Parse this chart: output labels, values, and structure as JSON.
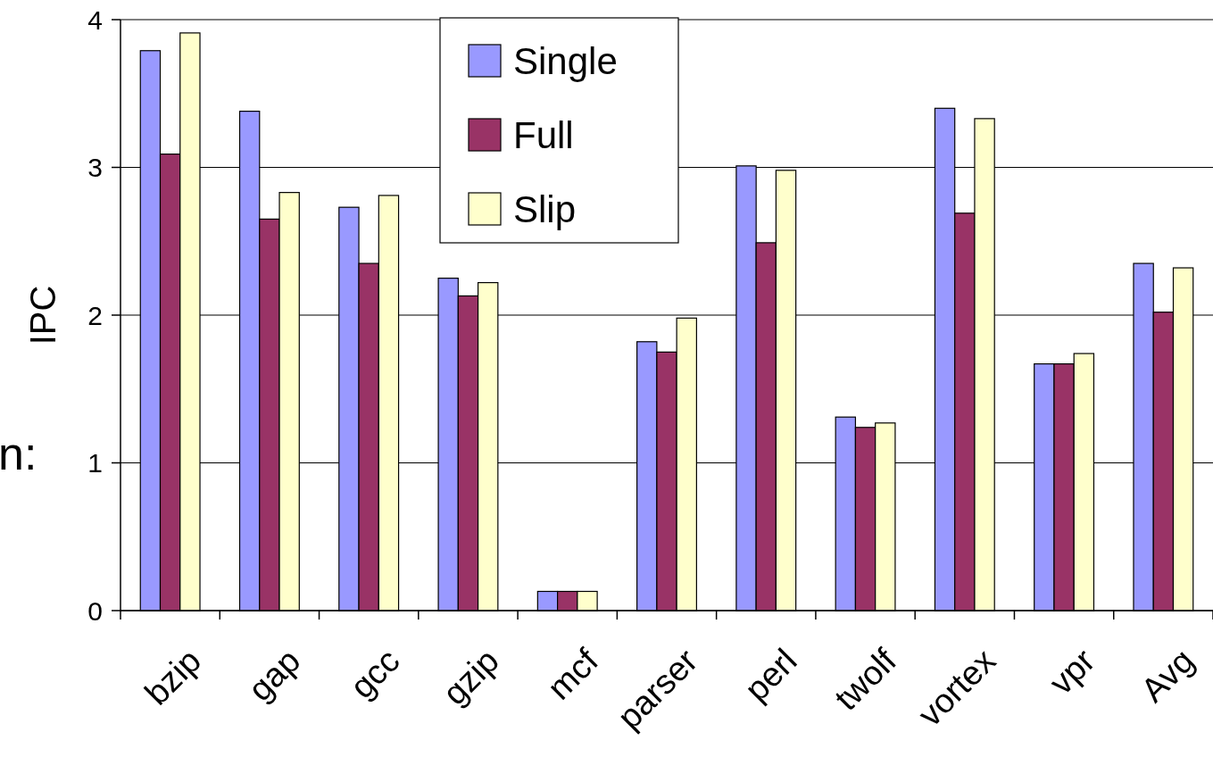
{
  "chart_data": {
    "type": "bar",
    "ylabel": "IPC",
    "categories": [
      "bzip",
      "gap",
      "gcc",
      "gzip",
      "mcf",
      "parser",
      "perl",
      "twolf",
      "vortex",
      "vpr",
      "Avg"
    ],
    "series": [
      {
        "name": "Single",
        "color": "#9999ff",
        "values": [
          3.79,
          3.38,
          2.73,
          2.25,
          0.13,
          1.82,
          3.01,
          1.31,
          3.4,
          1.67,
          2.35
        ]
      },
      {
        "name": "Full",
        "color": "#993366",
        "values": [
          3.09,
          2.65,
          2.35,
          2.13,
          0.13,
          1.75,
          2.49,
          1.24,
          2.69,
          1.67,
          2.02
        ]
      },
      {
        "name": "Slip",
        "color": "#ffffcc",
        "values": [
          3.91,
          2.83,
          2.81,
          2.22,
          0.13,
          1.98,
          2.98,
          1.27,
          3.33,
          1.74,
          2.32
        ]
      }
    ],
    "ylim": [
      0,
      4
    ],
    "yticks": [
      0,
      1,
      2,
      3,
      4
    ],
    "grid": "y",
    "legend": "top",
    "annotations": [
      "n:"
    ]
  }
}
